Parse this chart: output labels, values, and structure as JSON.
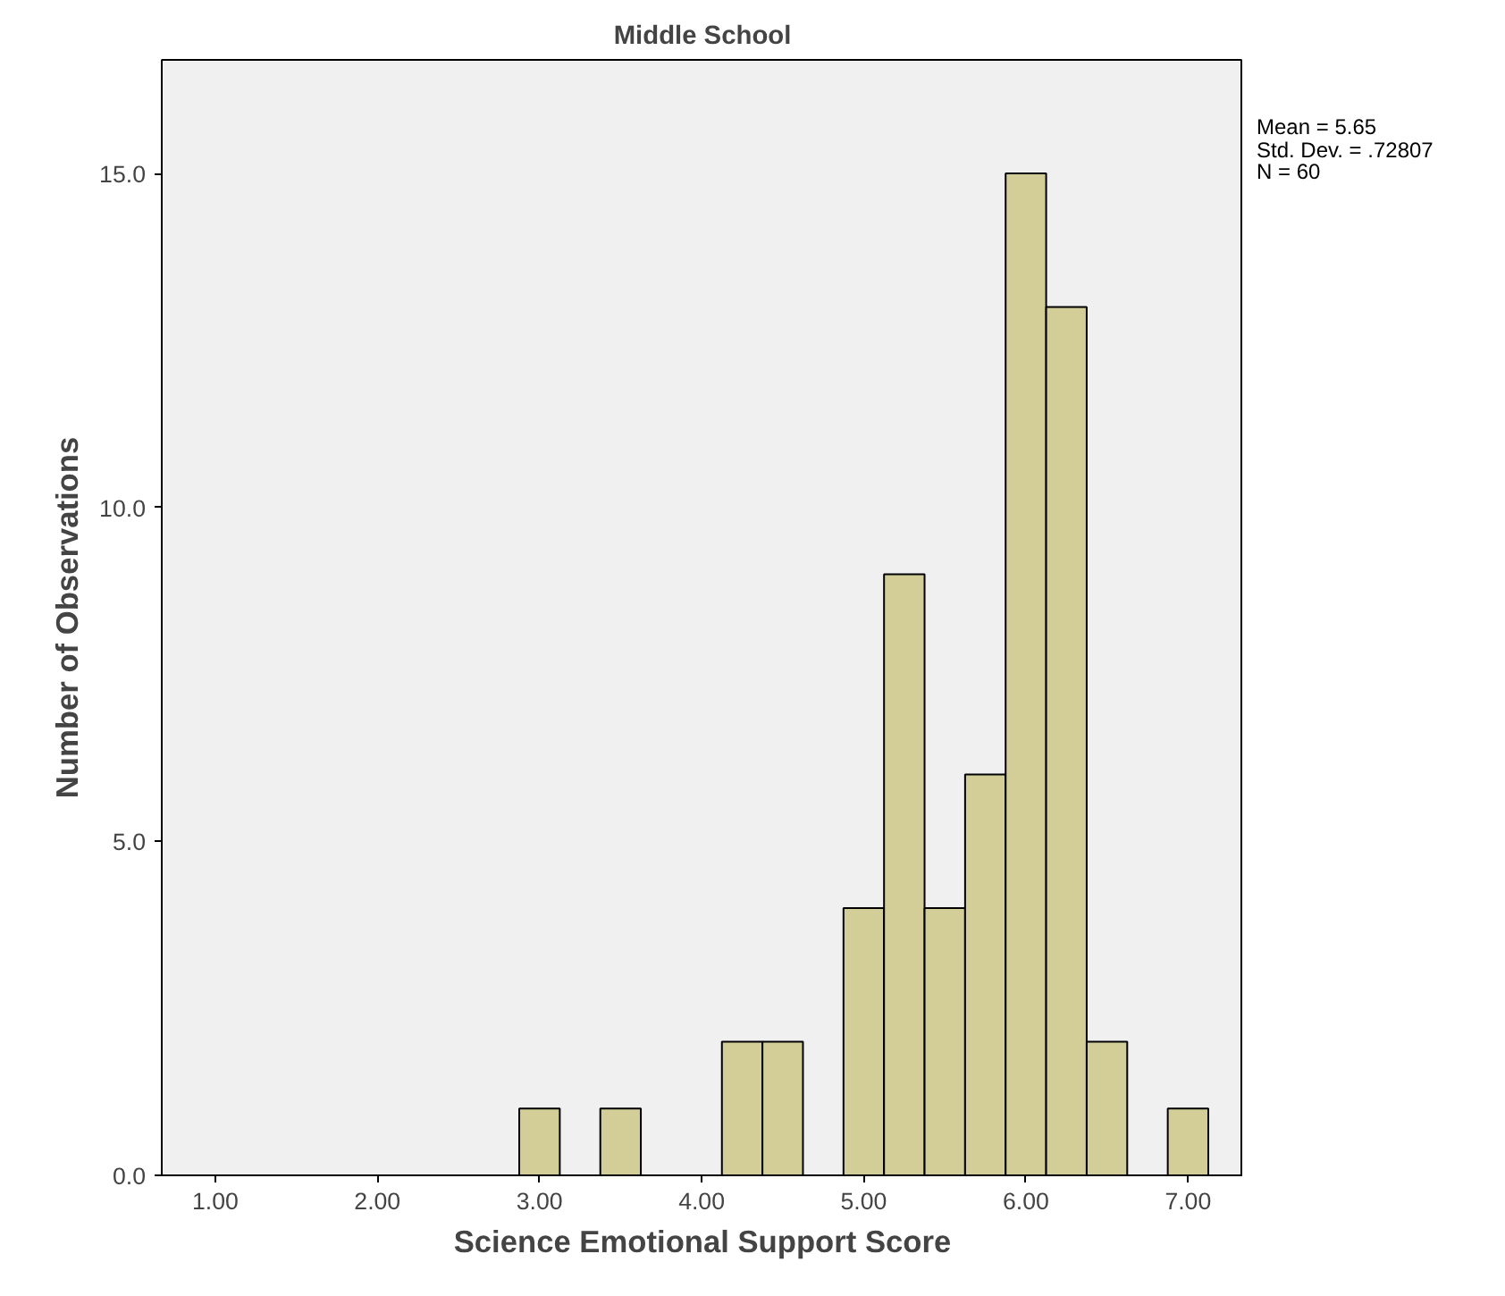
{
  "chart_data": {
    "type": "histogram",
    "title": "Middle School",
    "xlabel": "Science Emotional Support Score",
    "ylabel": "Number of Observations",
    "bins": [
      2.875,
      3.125,
      3.375,
      3.625,
      3.875,
      4.125,
      4.375,
      4.625,
      4.875,
      5.125,
      5.375,
      5.625,
      5.875,
      6.125,
      6.375,
      6.625,
      6.875,
      7.125
    ],
    "values": [
      1,
      0,
      1,
      0,
      0,
      2,
      2,
      0,
      4,
      9,
      4,
      6,
      15,
      13,
      2,
      0,
      1
    ],
    "color": "#d3ce97",
    "xlim": [
      0.67,
      7.34
    ],
    "ylim": [
      0,
      16.7
    ],
    "xticks": [
      {
        "value": 1,
        "label": "1.00"
      },
      {
        "value": 2,
        "label": "2.00"
      },
      {
        "value": 3,
        "label": "3.00"
      },
      {
        "value": 4,
        "label": "4.00"
      },
      {
        "value": 5,
        "label": "5.00"
      },
      {
        "value": 6,
        "label": "6.00"
      },
      {
        "value": 7,
        "label": "7.00"
      }
    ],
    "yticks": [
      {
        "value": 0,
        "label": "0.0"
      },
      {
        "value": 5,
        "label": "5.0"
      },
      {
        "value": 10,
        "label": "10.0"
      },
      {
        "value": 15,
        "label": "15.0"
      }
    ],
    "grid": false,
    "annotations": [
      "Mean = 5.65",
      "Std. Dev. = .72807",
      "N = 60"
    ]
  }
}
